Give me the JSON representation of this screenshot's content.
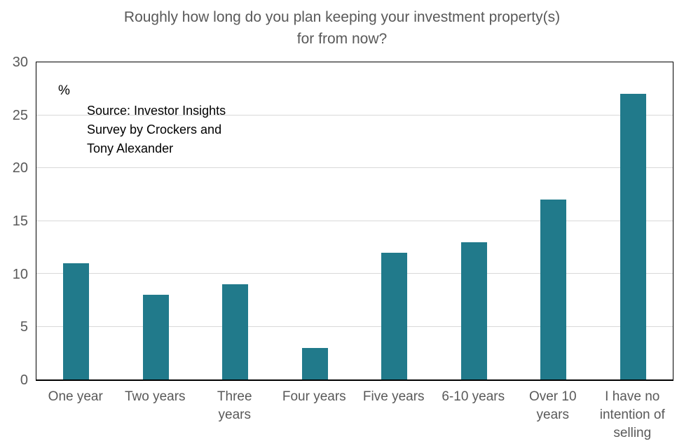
{
  "chart_data": {
    "type": "bar",
    "title": "Roughly how long do you plan keeping your investment property(s)\nfor from now?",
    "categories": [
      "One year",
      "Two years",
      "Three years",
      "Four years",
      "Five years",
      "6-10 years",
      "Over 10 years",
      "I have no intention of selling"
    ],
    "tick_labels": [
      "One year",
      "Two years",
      "Three\nyears",
      "Four years",
      "Five years",
      "6-10 years",
      "Over 10\nyears",
      "I have no\nintention of\nselling"
    ],
    "values": [
      11,
      8,
      9,
      3,
      12,
      13,
      17,
      27
    ],
    "xlabel": "",
    "ylabel": "%",
    "ylim": [
      0,
      30
    ],
    "y_ticks": [
      0,
      5,
      10,
      15,
      20,
      25,
      30
    ],
    "grid": "horizontal",
    "legend": "none",
    "source_note": "Source: Investor Insights\nSurvey by Crockers and\nTony Alexander",
    "colors": {
      "bar": "#217a8b",
      "gridline": "#d9d9d9",
      "axis_text": "#595959",
      "annotation_text": "#000000",
      "plot_border": "#000000"
    }
  }
}
